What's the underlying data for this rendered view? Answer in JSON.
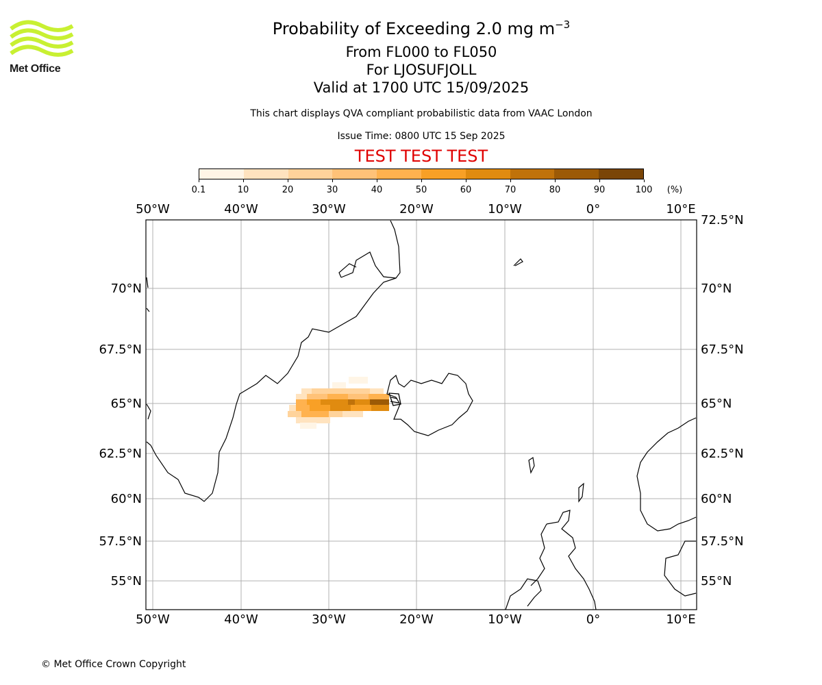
{
  "header": {
    "title_main": "Probability of Exceeding 2.0 mg m",
    "title_sup": "−3",
    "line1": "From FL000 to FL050",
    "line2": "For LJOSUFJOLL",
    "line3": "Valid at 1700 UTC 15/09/2025",
    "description": "This chart displays QVA compliant probabilistic data from VAAC London",
    "issue_time": "Issue Time: 0800 UTC 15 Sep 2025",
    "test_banner": "TEST TEST TEST"
  },
  "logo": {
    "text": "Met Office",
    "icon": "met-office-wave-logo",
    "color": "#c8f032"
  },
  "colorbar": {
    "ticks": [
      "0.1",
      "10",
      "20",
      "30",
      "40",
      "50",
      "60",
      "70",
      "80",
      "90",
      "100"
    ],
    "unit": "(%)",
    "colors": [
      "#fff5e6",
      "#ffe3bf",
      "#ffd39b",
      "#ffc278",
      "#ffb24f",
      "#f8a026",
      "#e08b10",
      "#c0720a",
      "#9c5a06",
      "#7a4507",
      "#5c3608"
    ]
  },
  "map": {
    "lon_labels": [
      "50°W",
      "40°W",
      "30°W",
      "20°W",
      "10°W",
      "0°",
      "10°E"
    ],
    "lat_labels": [
      "72.5°N",
      "70°N",
      "67.5°N",
      "65°N",
      "62.5°N",
      "60°N",
      "57.5°N",
      "55°N"
    ],
    "grid_color": "#b0b0b0"
  },
  "footer": {
    "copyright": "© Met Office Crown Copyright"
  }
}
